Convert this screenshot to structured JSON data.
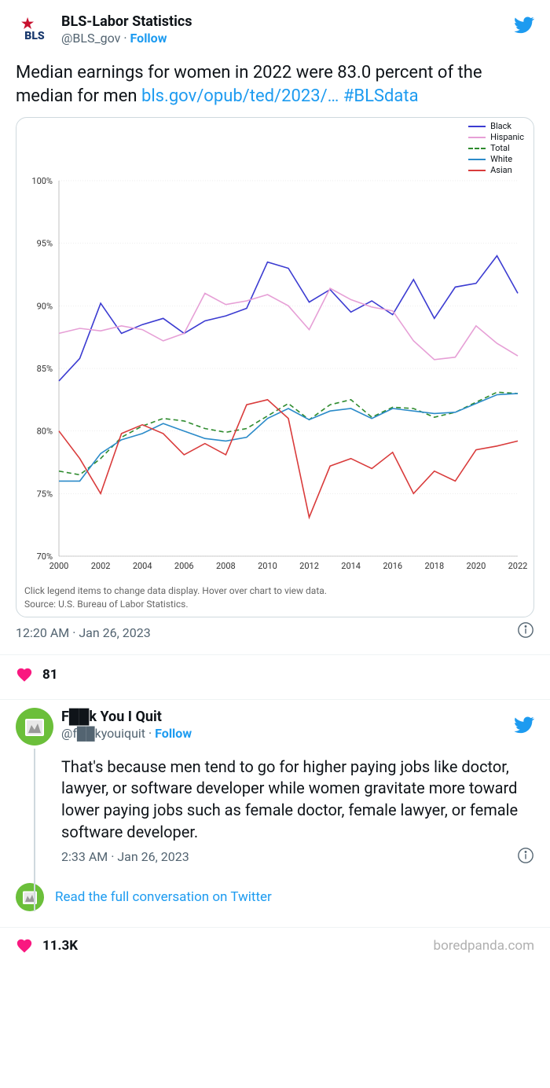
{
  "tweet1": {
    "author_name": "BLS-Labor Statistics",
    "author_handle": "@BLS_gov",
    "follow_label": "Follow",
    "text_line1": "Median earnings for women in 2022 were 83.0 percent of the median for men ",
    "link_text": "bls.gov/opub/ted/2023/…",
    "hashtag": "#BLSdata",
    "timestamp": "12:20 AM · Jan 26, 2023",
    "likes": "81"
  },
  "tweet2": {
    "author_name": "F██k You I Quit",
    "author_handle": "@f██kyouiquit",
    "follow_label": "Follow",
    "text": "That's because men tend to go for higher paying jobs like doctor, lawyer, or software developer while women gravitate more toward lower paying jobs such as female doctor, female lawyer, or female software developer.",
    "timestamp": "2:33 AM · Jan 26, 2023",
    "likes": "11.3K"
  },
  "read_full": "Read the full conversation on Twitter",
  "watermark": "boredpanda.com",
  "chart": {
    "type": "line",
    "caption_line1": "Click legend items to change data display. Hover over chart to view data.",
    "caption_line2": "Source: U.S. Bureau of Labor Statistics.",
    "ylim": [
      70,
      100
    ],
    "ytick_step": 5,
    "ytick_suffix": "%",
    "xlim": [
      2000,
      2022
    ],
    "xtick_step": 2,
    "background_color": "#ffffff",
    "grid_color": "#dddddd",
    "line_width": 1.6,
    "legend": [
      {
        "label": "Black",
        "color": "#3b3bd1",
        "dashed": false
      },
      {
        "label": "Hispanic",
        "color": "#e69fd6",
        "dashed": false
      },
      {
        "label": "Total",
        "color": "#2e8b2e",
        "dashed": true
      },
      {
        "label": "White",
        "color": "#2b8bc9",
        "dashed": false
      },
      {
        "label": "Asian",
        "color": "#d93b3b",
        "dashed": false
      }
    ],
    "series": {
      "Black": [
        84.0,
        85.8,
        90.2,
        87.8,
        88.5,
        89.0,
        87.8,
        88.8,
        89.2,
        89.8,
        93.5,
        93.0,
        90.3,
        91.3,
        89.5,
        90.4,
        89.3,
        92.1,
        89.0,
        91.5,
        91.8,
        94.0,
        91.0
      ],
      "Hispanic": [
        87.8,
        88.2,
        88.0,
        88.4,
        88.1,
        87.2,
        87.8,
        91.0,
        90.1,
        90.4,
        90.9,
        90.0,
        88.1,
        91.4,
        90.5,
        89.9,
        89.6,
        87.2,
        85.7,
        85.9,
        88.4,
        87.0,
        86.0
      ],
      "Total": [
        76.8,
        76.5,
        77.8,
        79.5,
        80.4,
        81.0,
        80.8,
        80.2,
        79.9,
        80.2,
        81.2,
        82.2,
        80.9,
        82.1,
        82.5,
        81.1,
        81.9,
        81.8,
        81.1,
        81.5,
        82.3,
        83.1,
        83.0
      ],
      "White": [
        76.0,
        76.0,
        78.2,
        79.3,
        79.8,
        80.6,
        80.0,
        79.4,
        79.2,
        79.5,
        81.0,
        81.8,
        80.9,
        81.6,
        81.8,
        81.0,
        81.8,
        81.6,
        81.4,
        81.5,
        82.2,
        82.9,
        83.0
      ],
      "Asian": [
        80.0,
        77.8,
        75.0,
        79.8,
        80.5,
        79.8,
        78.1,
        79.0,
        78.1,
        82.1,
        82.5,
        81.0,
        73.1,
        77.2,
        77.8,
        77.0,
        78.3,
        75.0,
        76.8,
        76.0,
        78.5,
        78.8,
        79.2
      ]
    }
  }
}
